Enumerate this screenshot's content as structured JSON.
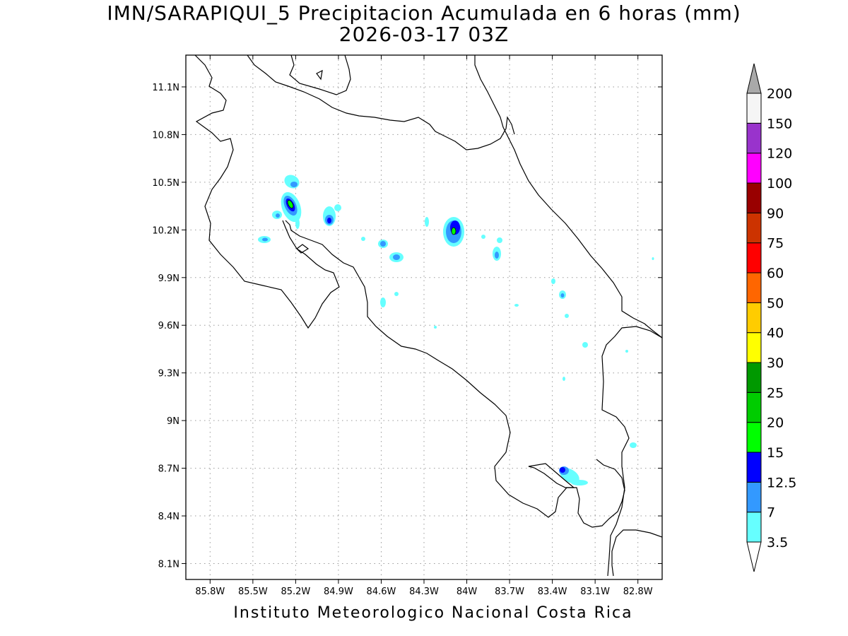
{
  "map": {
    "title_line1": "IMN/SARAPIQUI_5 Precipitacion Acumulada en 6 horas (mm)",
    "title_line2": "2026-03-17 03Z",
    "footer": "Instituto Meteorologico Nacional Costa Rica",
    "lon_labels": [
      "85.8W",
      "85.5W",
      "85.2W",
      "84.9W",
      "84.6W",
      "84.3W",
      "84W",
      "83.7W",
      "83.4W",
      "83.1W",
      "82.8W"
    ],
    "lon_values": [
      -85.8,
      -85.5,
      -85.2,
      -84.9,
      -84.6,
      -84.3,
      -84.0,
      -83.7,
      -83.4,
      -83.1,
      -82.8
    ],
    "lat_labels": [
      "11.1N",
      "10.8N",
      "10.5N",
      "10.2N",
      "9.9N",
      "9.6N",
      "9.3N",
      "9N",
      "8.7N",
      "8.4N",
      "8.1N"
    ],
    "lat_values": [
      11.1,
      10.8,
      10.5,
      10.2,
      9.9,
      9.6,
      9.3,
      9.0,
      8.7,
      8.4,
      8.1
    ],
    "lon_range": [
      -85.97,
      -82.63
    ],
    "lat_range": [
      8.0,
      11.3
    ]
  },
  "colorbar": {
    "labels": [
      "3.5",
      "7",
      "12.5",
      "15",
      "20",
      "25",
      "30",
      "40",
      "50",
      "60",
      "75",
      "90",
      "100",
      "120",
      "150",
      "200"
    ],
    "colors": [
      "#66ffff",
      "#3399ff",
      "#0000ff",
      "#00ff00",
      "#00cc00",
      "#009900",
      "#ffff00",
      "#ffcc00",
      "#ff6600",
      "#ff0000",
      "#cc3300",
      "#990000",
      "#ff00ff",
      "#9933cc",
      "#f5f5f5"
    ],
    "overflow_color": "#a9a9a9"
  }
}
